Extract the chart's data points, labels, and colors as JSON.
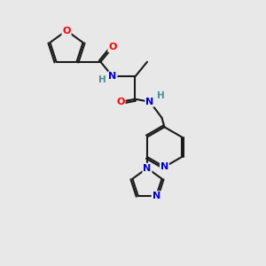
{
  "background_color": "#e8e8e8",
  "bond_color": "#1a1a1a",
  "atom_colors": {
    "O": "#ff0000",
    "N": "#0000cc",
    "H": "#4a9090",
    "C": "#1a1a1a"
  }
}
